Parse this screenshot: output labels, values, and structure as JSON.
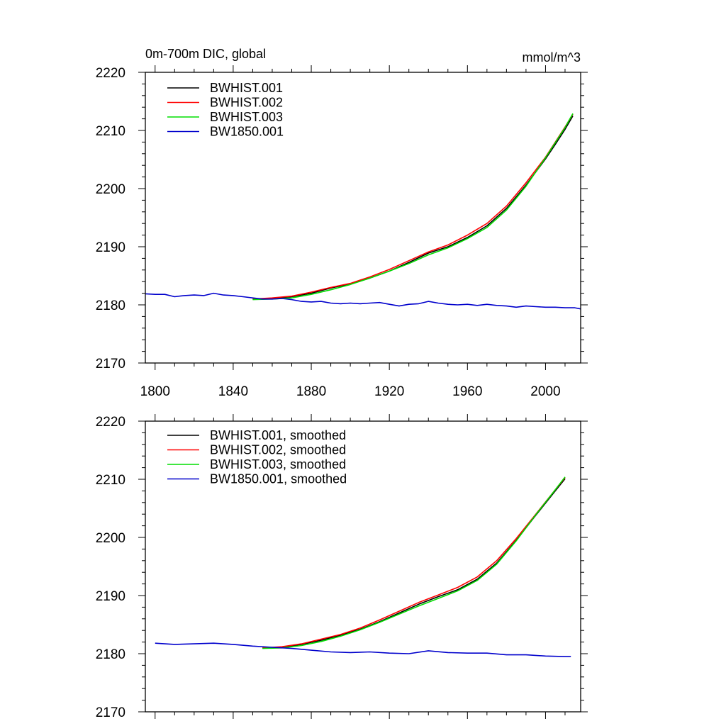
{
  "chart_data": [
    {
      "type": "line",
      "title_left": "0m-700m DIC, global",
      "title_right": "mmol/m^3",
      "xlabel": "",
      "ylabel": "",
      "xlim": [
        1795,
        2018
      ],
      "ylim": [
        2170,
        2220
      ],
      "x_ticks": [
        1800,
        1840,
        1880,
        1920,
        1960,
        2000
      ],
      "x_tick_labels": [
        "1800",
        "1840",
        "1880",
        "1920",
        "1960",
        "2000"
      ],
      "y_ticks": [
        2170,
        2180,
        2190,
        2200,
        2210,
        2220
      ],
      "y_tick_labels": [
        "2170",
        "2180",
        "2190",
        "2200",
        "2210",
        "2220"
      ],
      "grid": false,
      "legend_position": "top-left",
      "series": [
        {
          "name": "BWHIST.001",
          "color": "#000000",
          "x": [
            1850,
            1860,
            1870,
            1880,
            1890,
            1900,
            1910,
            1920,
            1930,
            1940,
            1950,
            1960,
            1970,
            1980,
            1990,
            2000,
            2005,
            2010,
            2014
          ],
          "y": [
            2181.0,
            2181.1,
            2181.4,
            2182.0,
            2182.9,
            2183.6,
            2184.6,
            2185.8,
            2187.3,
            2188.9,
            2190.0,
            2191.6,
            2193.6,
            2196.6,
            2200.6,
            2205.1,
            2207.6,
            2210.2,
            2212.5
          ]
        },
        {
          "name": "BWHIST.002",
          "color": "#ff0000",
          "x": [
            1850,
            1860,
            1870,
            1880,
            1890,
            1900,
            1910,
            1920,
            1930,
            1940,
            1950,
            1960,
            1970,
            1980,
            1990,
            2000,
            2005,
            2010,
            2014
          ],
          "y": [
            2181.0,
            2181.2,
            2181.5,
            2182.2,
            2183.0,
            2183.7,
            2184.8,
            2186.1,
            2187.6,
            2189.1,
            2190.3,
            2192.0,
            2194.0,
            2197.0,
            2201.0,
            2205.4,
            2208.0,
            2210.6,
            2212.8
          ]
        },
        {
          "name": "BWHIST.003",
          "color": "#00dd00",
          "x": [
            1850,
            1860,
            1870,
            1880,
            1890,
            1900,
            1910,
            1920,
            1930,
            1940,
            1950,
            1960,
            1970,
            1980,
            1990,
            2000,
            2005,
            2010,
            2014
          ],
          "y": [
            2180.9,
            2181.0,
            2181.2,
            2181.8,
            2182.6,
            2183.5,
            2184.6,
            2185.8,
            2187.1,
            2188.6,
            2189.8,
            2191.4,
            2193.3,
            2196.3,
            2200.4,
            2205.3,
            2207.9,
            2210.5,
            2212.9
          ]
        },
        {
          "name": "BW1850.001",
          "color": "#0000cc",
          "x": [
            1795,
            1800,
            1805,
            1810,
            1815,
            1820,
            1825,
            1830,
            1835,
            1840,
            1845,
            1850,
            1855,
            1860,
            1865,
            1870,
            1875,
            1880,
            1885,
            1890,
            1895,
            1900,
            1905,
            1910,
            1915,
            1920,
            1925,
            1930,
            1935,
            1940,
            1945,
            1950,
            1955,
            1960,
            1965,
            1970,
            1975,
            1980,
            1985,
            1990,
            1995,
            2000,
            2005,
            2010,
            2015,
            2018
          ],
          "y": [
            2181.9,
            2181.8,
            2181.8,
            2181.4,
            2181.6,
            2181.7,
            2181.6,
            2182.0,
            2181.7,
            2181.6,
            2181.4,
            2181.2,
            2181.0,
            2181.0,
            2181.1,
            2180.9,
            2180.6,
            2180.5,
            2180.6,
            2180.3,
            2180.2,
            2180.3,
            2180.2,
            2180.3,
            2180.4,
            2180.1,
            2179.8,
            2180.1,
            2180.2,
            2180.6,
            2180.3,
            2180.1,
            2180.0,
            2180.1,
            2179.9,
            2180.1,
            2179.9,
            2179.8,
            2179.6,
            2179.8,
            2179.7,
            2179.6,
            2179.6,
            2179.5,
            2179.5,
            2179.3
          ]
        }
      ]
    },
    {
      "type": "line",
      "title_left": "",
      "title_right": "",
      "xlabel": "",
      "ylabel": "",
      "xlim": [
        1795,
        2018
      ],
      "ylim": [
        2170,
        2220
      ],
      "x_ticks": [
        1800,
        1840,
        1880,
        1920,
        1960,
        2000
      ],
      "x_tick_labels": [],
      "y_ticks": [
        2170,
        2180,
        2190,
        2200,
        2210,
        2220
      ],
      "y_tick_labels": [
        "2170",
        "2180",
        "2190",
        "2200",
        "2210",
        "2220"
      ],
      "grid": false,
      "legend_position": "top-left",
      "series": [
        {
          "name": "BWHIST.001, smoothed",
          "color": "#000000",
          "x": [
            1855,
            1865,
            1875,
            1885,
            1895,
            1905,
            1915,
            1925,
            1935,
            1945,
            1955,
            1965,
            1975,
            1985,
            1995,
            2005,
            2010
          ],
          "y": [
            2181.0,
            2181.1,
            2181.6,
            2182.3,
            2183.2,
            2184.2,
            2185.5,
            2187.0,
            2188.5,
            2189.8,
            2191.0,
            2192.8,
            2195.6,
            2199.5,
            2203.8,
            2208.0,
            2210.1
          ]
        },
        {
          "name": "BWHIST.002, smoothed",
          "color": "#ff0000",
          "x": [
            1855,
            1865,
            1875,
            1885,
            1895,
            1905,
            1915,
            1925,
            1935,
            1945,
            1955,
            1965,
            1975,
            1985,
            1995,
            2005,
            2010
          ],
          "y": [
            2181.0,
            2181.2,
            2181.7,
            2182.5,
            2183.3,
            2184.4,
            2185.8,
            2187.3,
            2188.8,
            2190.1,
            2191.4,
            2193.2,
            2196.0,
            2199.8,
            2204.0,
            2208.2,
            2210.3
          ]
        },
        {
          "name": "BWHIST.003, smoothed",
          "color": "#00dd00",
          "x": [
            1855,
            1865,
            1875,
            1885,
            1895,
            1905,
            1915,
            1925,
            1935,
            1945,
            1955,
            1965,
            1975,
            1985,
            1995,
            2005,
            2010
          ],
          "y": [
            2180.9,
            2181.0,
            2181.4,
            2182.1,
            2183.0,
            2184.1,
            2185.4,
            2186.8,
            2188.2,
            2189.5,
            2190.8,
            2192.6,
            2195.4,
            2199.4,
            2203.9,
            2208.2,
            2210.4
          ]
        },
        {
          "name": "BW1850.001, smoothed",
          "color": "#0000cc",
          "x": [
            1800,
            1810,
            1820,
            1830,
            1840,
            1850,
            1860,
            1870,
            1880,
            1890,
            1900,
            1910,
            1920,
            1930,
            1940,
            1950,
            1960,
            1970,
            1980,
            1990,
            2000,
            2010,
            2013
          ],
          "y": [
            2181.8,
            2181.6,
            2181.7,
            2181.8,
            2181.6,
            2181.3,
            2181.1,
            2180.9,
            2180.6,
            2180.3,
            2180.2,
            2180.3,
            2180.1,
            2180.0,
            2180.5,
            2180.2,
            2180.1,
            2180.1,
            2179.8,
            2179.8,
            2179.6,
            2179.5,
            2179.5
          ]
        }
      ]
    }
  ]
}
